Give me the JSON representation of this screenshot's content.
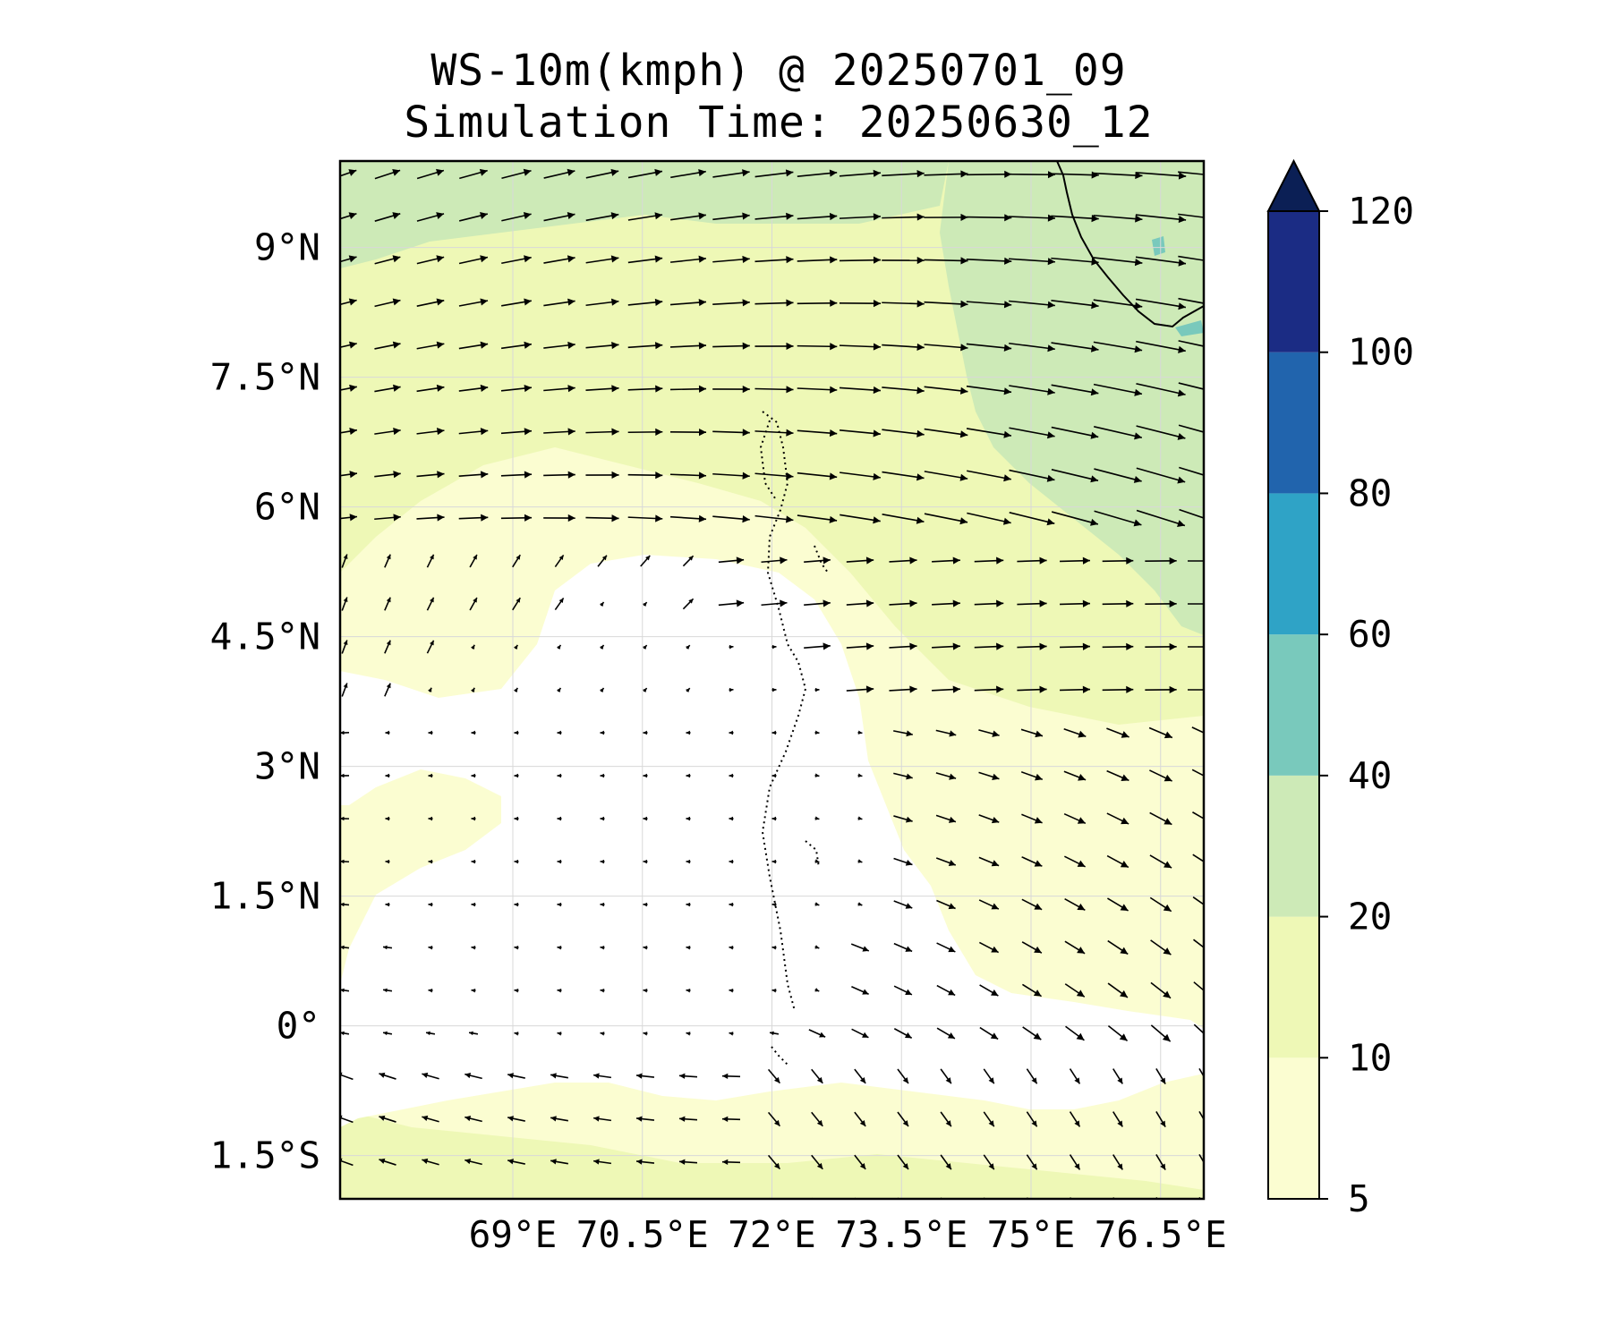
{
  "title": {
    "line1": "WS-10m(kmph) @ 20250701_09",
    "line2": "Simulation Time: 20250630_12"
  },
  "map": {
    "lon_range": [
      67.0,
      77.0
    ],
    "lat_range": [
      -2.0,
      10.0
    ],
    "lon_ticks": [
      {
        "value": 69.0,
        "label": "69°E"
      },
      {
        "value": 70.5,
        "label": "70.5°E"
      },
      {
        "value": 72.0,
        "label": "72°E"
      },
      {
        "value": 73.5,
        "label": "73.5°E"
      },
      {
        "value": 75.0,
        "label": "75°E"
      },
      {
        "value": 76.5,
        "label": "76.5°E"
      }
    ],
    "lat_ticks": [
      {
        "value": 9.0,
        "label": "9°N"
      },
      {
        "value": 7.5,
        "label": "7.5°N"
      },
      {
        "value": 6.0,
        "label": "6°N"
      },
      {
        "value": 4.5,
        "label": "4.5°N"
      },
      {
        "value": 3.0,
        "label": "3°N"
      },
      {
        "value": 1.5,
        "label": "1.5°N"
      },
      {
        "value": 0.0,
        "label": "0°"
      },
      {
        "value": -1.5,
        "label": "1.5°S"
      }
    ],
    "gridlines": true,
    "field": "wind speed at 10 m (kmph) with wind vectors",
    "features": [
      "Sri Lanka / India coastline (top-right)",
      "Maldives atolls (dotted)"
    ]
  },
  "colorbar": {
    "levels": [
      5,
      10,
      20,
      40,
      60,
      80,
      100,
      120
    ],
    "labels": [
      "5",
      "10",
      "20",
      "40",
      "60",
      "80",
      "100",
      "120"
    ],
    "colors": [
      "#fbfdd1",
      "#eef8b6",
      "#cdeab7",
      "#79c9bc",
      "#2fa3c6",
      "#2164ad",
      "#1b2c84",
      "#0b1f55"
    ],
    "extend": "max"
  },
  "colors": {
    "below_5": "#ffffff",
    "coastline": "#000000",
    "arrows": "#000000",
    "grid": "#d8d8d8"
  }
}
